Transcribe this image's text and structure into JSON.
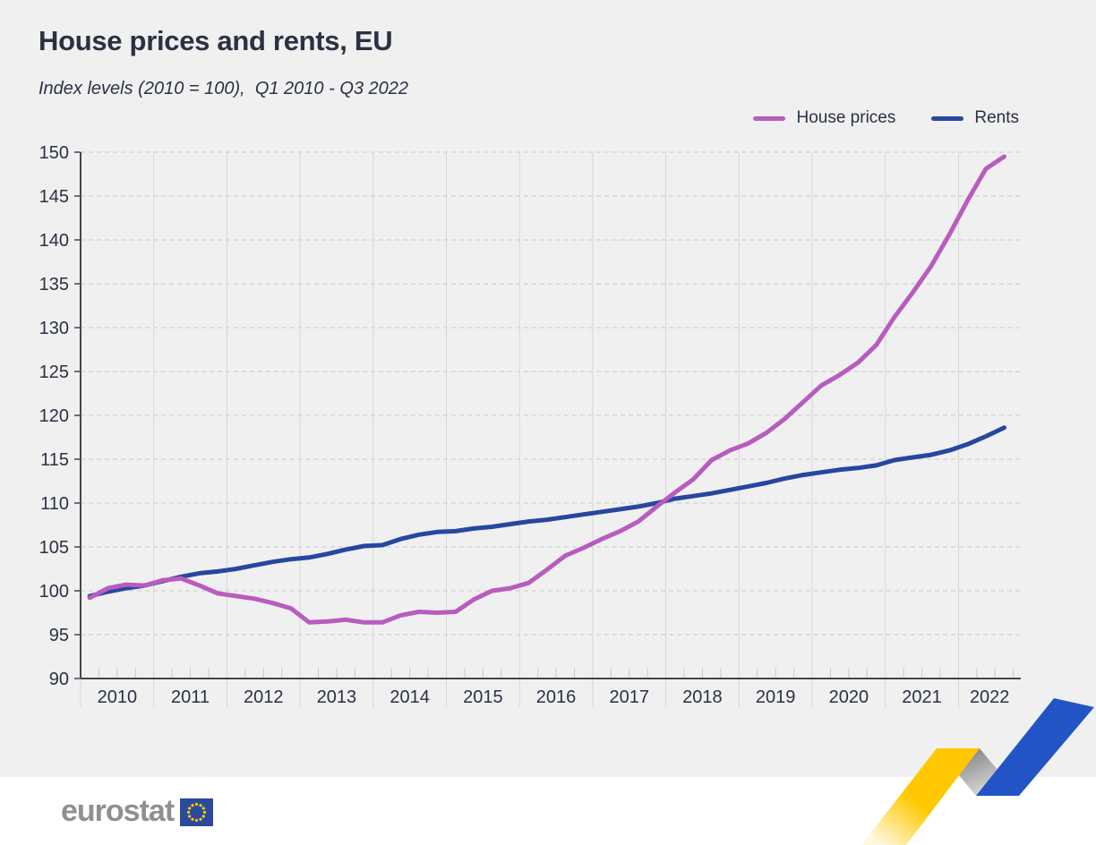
{
  "title": "House prices and rents, EU",
  "subtitle": "Index levels (2010 = 100),  Q1 2010 - Q3 2022",
  "legend": [
    {
      "label": "House prices",
      "color": "#b85cbe"
    },
    {
      "label": "Rents",
      "color": "#27479f"
    }
  ],
  "footer": {
    "logo_text": "eurostat"
  },
  "colors": {
    "background": "#f0f0f1",
    "footer_background": "#ffffff",
    "text": "#2a3142",
    "gridline": "#c8c8c8",
    "year_line": "#d6d6d6",
    "axis": "#43474e",
    "house_prices": "#b85cbe",
    "rents": "#27479f",
    "ribbon_yellow": "#ffc800",
    "ribbon_blue": "#2254c5",
    "eurostat_gray": "#8e9093",
    "eu_flag_blue": "#2a4a9d",
    "star_yellow": "#ffcc00"
  },
  "chart_data": {
    "type": "line",
    "title": "House prices and rents, EU",
    "subtitle": "Index levels (2010 = 100),  Q1 2010 - Q3 2022",
    "x_unit": "quarter",
    "x_range": [
      "2010-Q1",
      "2022-Q3"
    ],
    "year_labels": [
      "2010",
      "2011",
      "2012",
      "2013",
      "2014",
      "2015",
      "2016",
      "2017",
      "2018",
      "2019",
      "2020",
      "2021",
      "2022"
    ],
    "ylim": [
      90,
      150
    ],
    "yticks": [
      90,
      95,
      100,
      105,
      110,
      115,
      120,
      125,
      130,
      135,
      140,
      145,
      150
    ],
    "grid": {
      "horizontal": "dashed",
      "vertical": "solid-year-boundaries",
      "quarter_ticks": true
    },
    "legend_position": "top-right",
    "series": [
      {
        "name": "House prices",
        "color": "#b85cbe",
        "values": [
          99.2,
          100.3,
          100.7,
          100.6,
          101.2,
          101.4,
          100.6,
          99.7,
          99.4,
          99.1,
          98.6,
          98.0,
          96.4,
          96.5,
          96.7,
          96.4,
          96.4,
          97.2,
          97.6,
          97.5,
          97.6,
          99.0,
          100.0,
          100.3,
          100.9,
          102.4,
          104.0,
          104.9,
          105.9,
          106.8,
          107.9,
          109.6,
          111.2,
          112.7,
          114.9,
          116.0,
          116.8,
          118.0,
          119.6,
          121.5,
          123.4,
          124.6,
          126.0,
          128.0,
          131.2,
          134.0,
          137.0,
          140.6,
          144.5,
          148.1,
          149.5
        ]
      },
      {
        "name": "Rents",
        "color": "#27479f",
        "values": [
          99.4,
          99.9,
          100.3,
          100.6,
          101.1,
          101.6,
          102.0,
          102.2,
          102.5,
          102.9,
          103.3,
          103.6,
          103.8,
          104.2,
          104.7,
          105.1,
          105.2,
          105.9,
          106.4,
          106.7,
          106.8,
          107.1,
          107.3,
          107.6,
          107.9,
          108.1,
          108.4,
          108.7,
          109.0,
          109.3,
          109.6,
          110.0,
          110.5,
          110.8,
          111.1,
          111.5,
          111.9,
          112.3,
          112.8,
          113.2,
          113.5,
          113.8,
          114.0,
          114.3,
          114.9,
          115.2,
          115.5,
          116.0,
          116.7,
          117.6,
          118.6
        ]
      }
    ]
  }
}
